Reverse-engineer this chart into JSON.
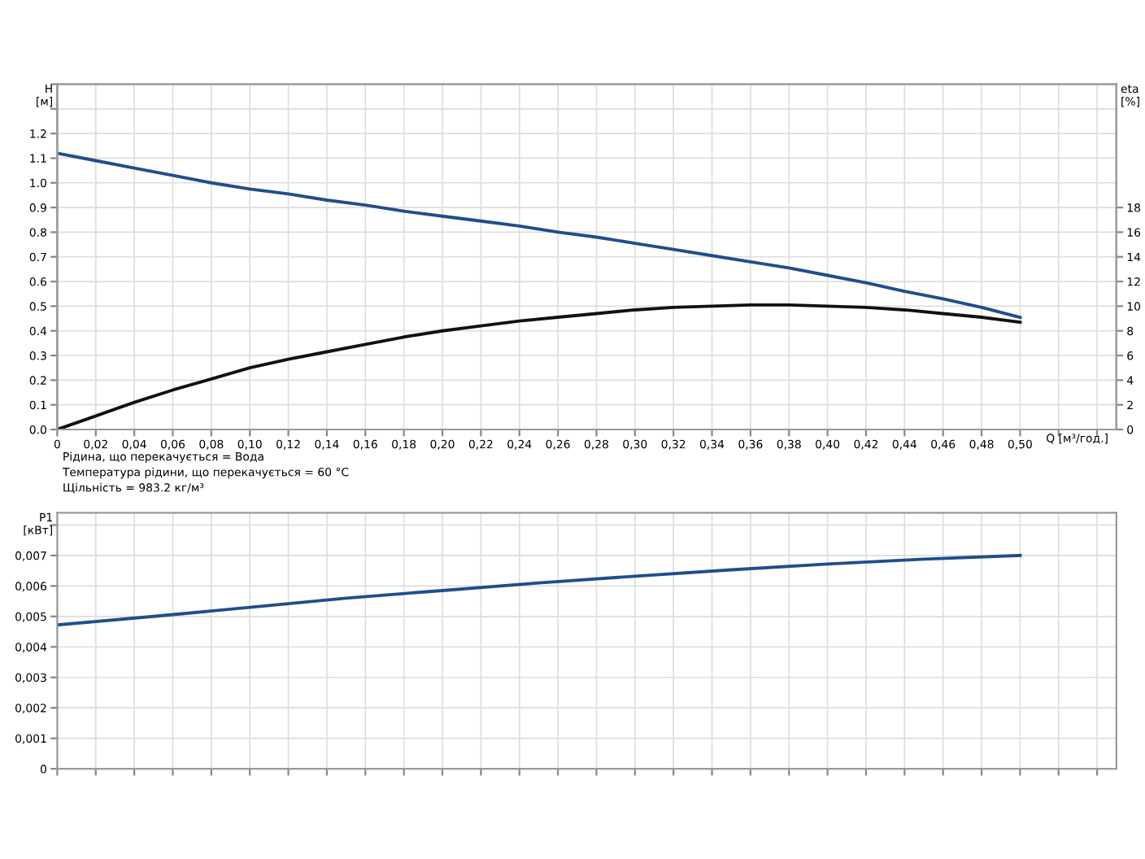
{
  "chart_data": [
    {
      "type": "line",
      "xlabel": "Q [м³/год.]",
      "ylabel": "H\n[м]",
      "y2label": "eta\n[%]",
      "x": [
        0,
        0.02,
        0.04,
        0.06,
        0.08,
        0.1,
        0.12,
        0.14,
        0.16,
        0.18,
        0.2,
        0.22,
        0.24,
        0.26,
        0.28,
        0.3,
        0.32,
        0.34,
        0.36,
        0.38,
        0.4,
        0.42,
        0.44,
        0.46,
        0.48,
        0.5
      ],
      "series": [
        {
          "color": "#1f4e8c",
          "values": [
            1.12,
            1.09,
            1.06,
            1.03,
            1.0,
            0.975,
            0.955,
            0.93,
            0.91,
            0.885,
            0.865,
            0.845,
            0.825,
            0.8,
            0.78,
            0.755,
            0.73,
            0.705,
            0.68,
            0.655,
            0.625,
            0.595,
            0.56,
            0.53,
            0.495,
            0.455
          ]
        },
        {
          "color": "#111111",
          "axis": "y2",
          "values": [
            0,
            1.1,
            2.2,
            3.2,
            4.1,
            5.0,
            5.7,
            6.3,
            6.9,
            7.5,
            8.0,
            8.4,
            8.8,
            9.1,
            9.4,
            9.7,
            9.9,
            10.0,
            10.1,
            10.1,
            10.0,
            9.9,
            9.7,
            9.4,
            9.1,
            8.7
          ]
        }
      ],
      "xlim": [
        0,
        0.55
      ],
      "xticks": [
        0,
        {
          "value": 0.02,
          "label": "0,02"
        },
        {
          "value": 0.04,
          "label": "0,04"
        },
        {
          "value": 0.06,
          "label": "0,06"
        },
        {
          "value": 0.08,
          "label": "0,08"
        },
        {
          "value": 0.1,
          "label": "0,10"
        },
        {
          "value": 0.12,
          "label": "0,12"
        },
        {
          "value": 0.14,
          "label": "0,14"
        },
        {
          "value": 0.16,
          "label": "0,16"
        },
        {
          "value": 0.18,
          "label": "0,18"
        },
        {
          "value": 0.2,
          "label": "0,20"
        },
        {
          "value": 0.22,
          "label": "0,22"
        },
        {
          "value": 0.24,
          "label": "0,24"
        },
        {
          "value": 0.26,
          "label": "0,26"
        },
        {
          "value": 0.28,
          "label": "0,28"
        },
        {
          "value": 0.3,
          "label": "0,30"
        },
        {
          "value": 0.32,
          "label": "0,32"
        },
        {
          "value": 0.34,
          "label": "0,34"
        },
        {
          "value": 0.36,
          "label": "0,36"
        },
        {
          "value": 0.38,
          "label": "0,38"
        },
        {
          "value": 0.4,
          "label": "0,40"
        },
        {
          "value": 0.42,
          "label": "0,42"
        },
        {
          "value": 0.44,
          "label": "0,44"
        },
        {
          "value": 0.46,
          "label": "0,46"
        },
        {
          "value": 0.48,
          "label": "0,48"
        },
        {
          "value": 0.5,
          "label": "0,50"
        },
        {
          "value": 0.52,
          "label": null
        },
        {
          "value": 0.54,
          "label": null
        }
      ],
      "ylim": [
        0,
        1.4
      ],
      "yticks": [
        {
          "value": 0,
          "label": "0.0"
        },
        0.1,
        0.2,
        0.3,
        0.4,
        0.5,
        0.6,
        0.7,
        0.8,
        0.9,
        {
          "value": 1.0,
          "label": "1.0"
        },
        1.1,
        1.2,
        {
          "value": 1.3,
          "label": null
        },
        {
          "value": 1.4,
          "label": null
        }
      ],
      "y2lim": [
        0,
        28
      ],
      "y2ticks": [
        0,
        2,
        4,
        6,
        8,
        10,
        12,
        14,
        16,
        18
      ],
      "grid": true,
      "annotations": [
        "Рідина, що перекачується = Вода",
        "Температура рідини, що перекачується = 60 °C",
        "Щільність = 983.2 кг/м³"
      ]
    },
    {
      "type": "line",
      "ylabel": "P1\n[кВт]",
      "x": [
        0,
        0.05,
        0.1,
        0.15,
        0.2,
        0.25,
        0.3,
        0.35,
        0.4,
        0.45,
        0.5
      ],
      "series": [
        {
          "color": "#1f4e8c",
          "values": [
            0.00472,
            0.005,
            0.0053,
            0.0056,
            0.00585,
            0.0061,
            0.00632,
            0.00653,
            0.00672,
            0.00688,
            0.007
          ]
        }
      ],
      "xlim": [
        0,
        0.55
      ],
      "xticks": [
        0,
        0.02,
        0.04,
        0.06,
        0.08,
        0.1,
        0.12,
        0.14,
        0.16,
        0.18,
        0.2,
        0.22,
        0.24,
        0.26,
        0.28,
        0.3,
        0.32,
        0.34,
        0.36,
        0.38,
        0.4,
        0.42,
        0.44,
        0.46,
        0.48,
        0.5,
        0.52,
        0.54
      ],
      "ylim": [
        0,
        0.0084
      ],
      "yticks": [
        0,
        {
          "value": 0.001,
          "label": "0,001"
        },
        {
          "value": 0.002,
          "label": "0,002"
        },
        {
          "value": 0.003,
          "label": "0,003"
        },
        {
          "value": 0.004,
          "label": "0,004"
        },
        {
          "value": 0.005,
          "label": "0,005"
        },
        {
          "value": 0.006,
          "label": "0,006"
        },
        {
          "value": 0.007,
          "label": "0,007"
        },
        {
          "value": 0.008,
          "label": null
        }
      ],
      "grid": true,
      "tick_labels": "y"
    }
  ]
}
